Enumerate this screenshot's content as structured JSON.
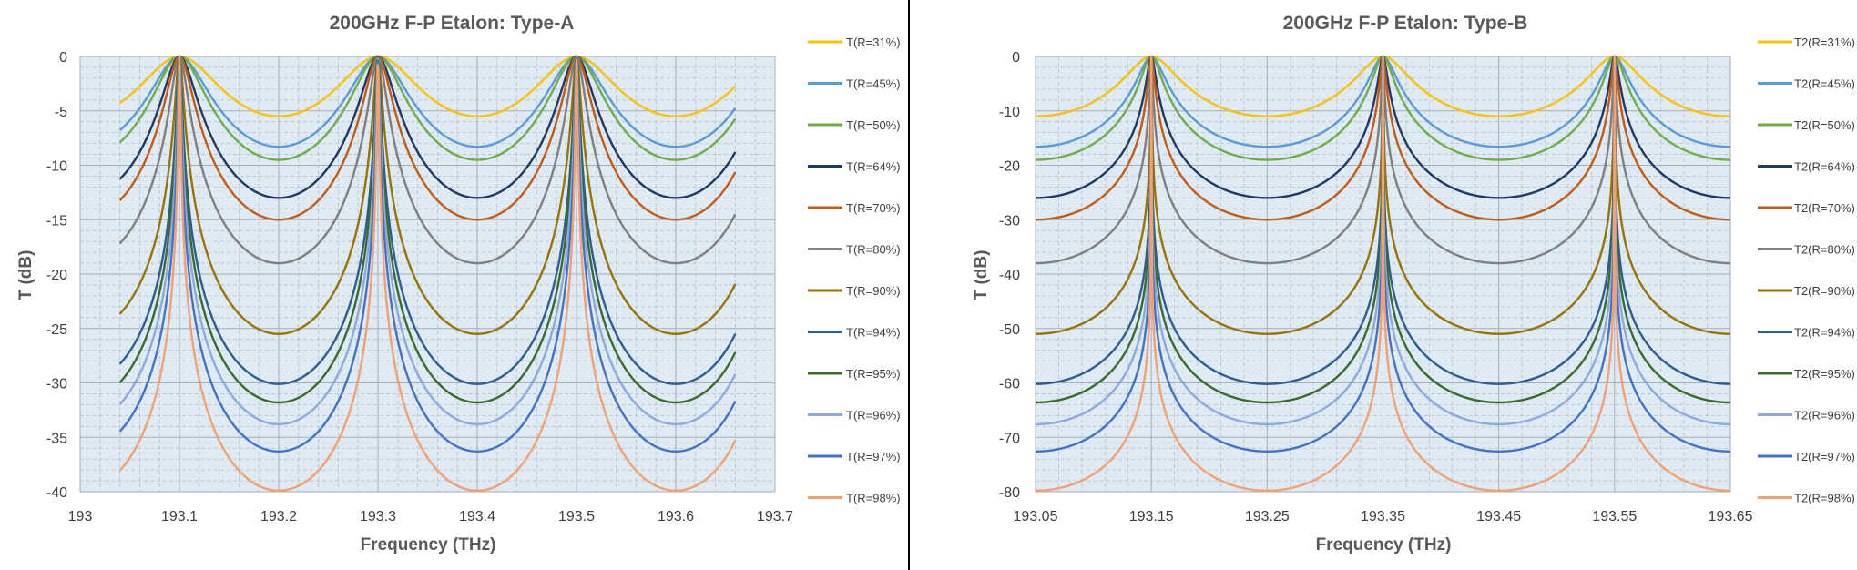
{
  "chart_data": [
    {
      "type": "line",
      "title": "200GHz F-P Etalon: Type-A",
      "xlabel": "Frequency (THz)",
      "ylabel": "T (dB)",
      "xlim": [
        193,
        193.7
      ],
      "ylim": [
        -40,
        0
      ],
      "x_ticks": [
        193,
        193.1,
        193.2,
        193.3,
        193.4,
        193.5,
        193.6,
        193.7
      ],
      "x_tick_labels": [
        "193",
        "193.1",
        "193.2",
        "193.3",
        "193.4",
        "193.5",
        "193.6",
        "193.7"
      ],
      "y_ticks": [
        0,
        -5,
        -10,
        -15,
        -20,
        -25,
        -30,
        -35,
        -40
      ],
      "y_tick_labels": [
        "0",
        "-5",
        "-10",
        "-15",
        "-20",
        "-25",
        "-30",
        "-35",
        "-40"
      ],
      "x_range": [
        193.04,
        193.66
      ],
      "peak_frequencies": [
        193.1,
        193.3,
        193.5
      ],
      "grid": true,
      "legend_position": "right",
      "series": [
        {
          "name": "T(R=31%)",
          "min_db": -5.5,
          "color": "#FFC000"
        },
        {
          "name": "T(R=45%)",
          "min_db": -8.3,
          "color": "#5B9BD5"
        },
        {
          "name": "T(R=50%)",
          "min_db": -9.5,
          "color": "#70AD47"
        },
        {
          "name": "T(R=64%)",
          "min_db": -13.0,
          "color": "#1F3864"
        },
        {
          "name": "T(R=70%)",
          "min_db": -15.0,
          "color": "#C55A11"
        },
        {
          "name": "T(R=80%)",
          "min_db": -19.0,
          "color": "#7F7F7F"
        },
        {
          "name": "T(R=90%)",
          "min_db": -25.5,
          "color": "#997300"
        },
        {
          "name": "T(R=94%)",
          "min_db": -30.1,
          "color": "#2E5D8E"
        },
        {
          "name": "T(R=95%)",
          "min_db": -31.8,
          "color": "#3A6B2B"
        },
        {
          "name": "T(R=96%)",
          "min_db": -33.8,
          "color": "#8EA9DB"
        },
        {
          "name": "T(R=97%)",
          "min_db": -36.3,
          "color": "#4472C4"
        },
        {
          "name": "T(R=98%)",
          "min_db": -39.9,
          "color": "#F4A070"
        }
      ]
    },
    {
      "type": "line",
      "title": "200GHz F-P Etalon: Type-B",
      "xlabel": "Frequency (THz)",
      "ylabel": "T (dB)",
      "xlim": [
        193.05,
        193.65
      ],
      "ylim": [
        -80,
        0
      ],
      "x_ticks": [
        193.05,
        193.15,
        193.25,
        193.35,
        193.45,
        193.55,
        193.65
      ],
      "x_tick_labels": [
        "193.05",
        "193.15",
        "193.25",
        "193.35",
        "193.45",
        "193.55",
        "193.65"
      ],
      "y_ticks": [
        0,
        -10,
        -20,
        -30,
        -40,
        -50,
        -60,
        -70,
        -80
      ],
      "y_tick_labels": [
        "0",
        "-10",
        "-20",
        "-30",
        "-40",
        "-50",
        "-60",
        "-70",
        "-80"
      ],
      "x_range": [
        193.05,
        193.65
      ],
      "peak_frequencies": [
        193.15,
        193.35,
        193.55
      ],
      "grid": true,
      "legend_position": "right",
      "series": [
        {
          "name": "T2(R=31%)",
          "min_db": -11.0,
          "color": "#FFC000"
        },
        {
          "name": "T2(R=45%)",
          "min_db": -16.6,
          "color": "#5B9BD5"
        },
        {
          "name": "T2(R=50%)",
          "min_db": -19.0,
          "color": "#70AD47"
        },
        {
          "name": "T2(R=64%)",
          "min_db": -26.0,
          "color": "#1F3864"
        },
        {
          "name": "T2(R=70%)",
          "min_db": -30.0,
          "color": "#C55A11"
        },
        {
          "name": "T2(R=80%)",
          "min_db": -38.0,
          "color": "#7F7F7F"
        },
        {
          "name": "T2(R=90%)",
          "min_db": -51.0,
          "color": "#997300"
        },
        {
          "name": "T2(R=94%)",
          "min_db": -60.2,
          "color": "#2E5D8E"
        },
        {
          "name": "T2(R=95%)",
          "min_db": -63.6,
          "color": "#3A6B2B"
        },
        {
          "name": "T2(R=96%)",
          "min_db": -67.6,
          "color": "#8EA9DB"
        },
        {
          "name": "T2(R=97%)",
          "min_db": -72.6,
          "color": "#4472C4"
        },
        {
          "name": "T2(R=98%)",
          "min_db": -79.8,
          "color": "#F4A070"
        }
      ]
    }
  ]
}
